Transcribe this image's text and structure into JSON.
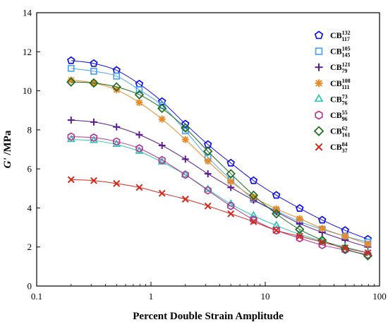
{
  "chart_data": {
    "type": "scatter",
    "title": "",
    "xlabel": "Percent Double Strain Amplitude",
    "ylabel_main": "G'",
    "ylabel_unit": " /MPa",
    "xscale": "log",
    "xlim": [
      0.1,
      100
    ],
    "ylim": [
      0,
      14
    ],
    "x_ticks": [
      0.1,
      1,
      10,
      100
    ],
    "x_tick_labels": [
      "0.1",
      "1",
      "10",
      "100"
    ],
    "y_ticks": [
      0,
      2,
      4,
      6,
      8,
      10,
      12,
      14
    ],
    "y_tick_labels": [
      "0",
      "2",
      "4",
      "6",
      "8",
      "10",
      "12",
      "14"
    ],
    "grid": false,
    "legend_position": "top-right",
    "x": [
      0.2,
      0.316,
      0.5,
      0.79,
      1.25,
      2.0,
      3.15,
      5.0,
      7.9,
      12.5,
      20,
      31.5,
      50,
      79
    ],
    "series": [
      {
        "name": "CB",
        "sup": "132",
        "sub": "117",
        "marker": "pentagon",
        "color": "#1010e0",
        "values": [
          11.55,
          11.4,
          11.05,
          10.35,
          9.45,
          8.3,
          7.25,
          6.3,
          5.4,
          4.65,
          3.98,
          3.38,
          2.85,
          2.4
        ]
      },
      {
        "name": "CB",
        "sup": "105",
        "sub": "145",
        "marker": "square",
        "color": "#4fa3e8",
        "values": [
          11.15,
          11.0,
          10.75,
          10.05,
          9.25,
          7.95,
          6.6,
          5.45,
          4.45,
          3.85,
          3.3,
          2.9,
          2.55,
          2.25
        ]
      },
      {
        "name": "CB",
        "sup": "121",
        "sub": "79",
        "marker": "plus",
        "color": "#5b1a8c",
        "values": [
          8.5,
          8.4,
          8.15,
          7.75,
          7.2,
          6.5,
          5.75,
          5.05,
          4.4,
          3.8,
          3.2,
          2.75,
          2.35,
          2.0
        ]
      },
      {
        "name": "CB",
        "sup": "108",
        "sub": "111",
        "marker": "asterisk",
        "color": "#e58b28",
        "values": [
          10.55,
          10.4,
          10.05,
          9.4,
          8.55,
          7.5,
          6.4,
          5.35,
          4.55,
          3.95,
          3.45,
          2.95,
          2.55,
          2.15
        ]
      },
      {
        "name": "CB",
        "sup": "73",
        "sub": "76",
        "marker": "triangle",
        "color": "#2ec4b0",
        "values": [
          7.5,
          7.45,
          7.25,
          6.9,
          6.35,
          5.7,
          4.95,
          4.2,
          3.6,
          3.1,
          2.65,
          2.3,
          2.0,
          1.7
        ]
      },
      {
        "name": "CB",
        "sup": "55",
        "sub": "96",
        "marker": "hexagon",
        "color": "#b0389a",
        "values": [
          7.65,
          7.6,
          7.4,
          7.05,
          6.45,
          5.7,
          4.9,
          4.1,
          3.4,
          2.85,
          2.45,
          2.1,
          1.85,
          1.6
        ]
      },
      {
        "name": "CB",
        "sup": "62",
        "sub": "161",
        "marker": "diamond",
        "color": "#1f6a1f",
        "values": [
          10.45,
          10.4,
          10.2,
          9.8,
          9.1,
          8.1,
          6.9,
          5.75,
          4.65,
          3.7,
          2.9,
          2.35,
          1.9,
          1.55
        ]
      },
      {
        "name": "CB",
        "sup": "84",
        "sub": "37",
        "marker": "x",
        "color": "#d12a1c",
        "values": [
          5.45,
          5.4,
          5.25,
          5.05,
          4.75,
          4.45,
          4.1,
          3.7,
          3.3,
          2.85,
          2.55,
          2.25,
          1.95,
          1.7
        ]
      }
    ]
  }
}
